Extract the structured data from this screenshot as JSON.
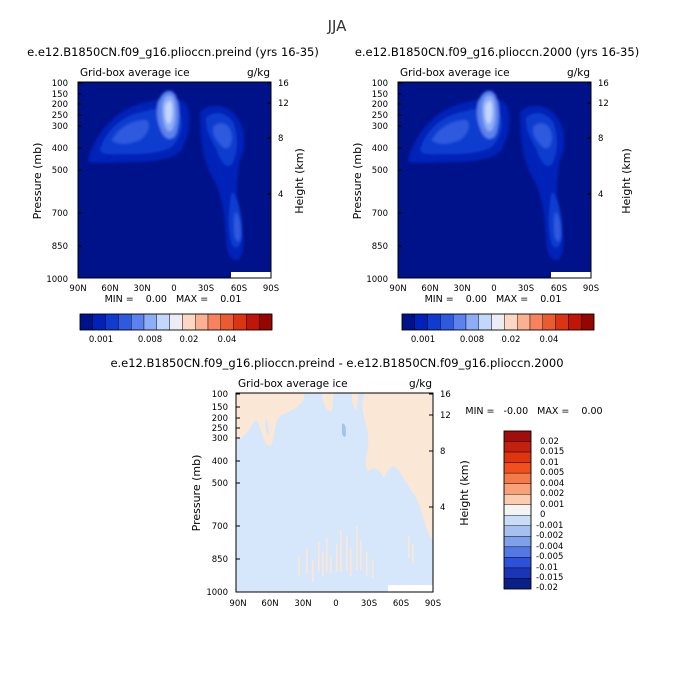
{
  "page_title": "JJA",
  "chart_data": [
    {
      "type": "heatmap",
      "title": "e.e12.B1850CN.f09_g16.plioccn.preind (yrs 16-35)",
      "subtitle_left": "Grid-box average ice",
      "subtitle_right": "g/kg",
      "xlabel": "",
      "ylabel": "Pressure (mb)",
      "y2label": "Height (km)",
      "x_ticks": [
        "90N",
        "60N",
        "30N",
        "0",
        "30S",
        "60S",
        "90S"
      ],
      "y_ticks": [
        "100",
        "150",
        "200",
        "250",
        "300",
        "400",
        "500",
        "700",
        "850",
        "1000"
      ],
      "y2_ticks": [
        "16",
        "12",
        "8",
        "4"
      ],
      "stats": "MIN =    0.00   MAX =    0.01",
      "colorbar": {
        "orientation": "horizontal",
        "labels": [
          "0.001",
          "0.008",
          "0.02",
          "0.04"
        ],
        "colors": [
          "#00128a",
          "#0022b8",
          "#0f3ccf",
          "#2e5ae0",
          "#5b82ee",
          "#8fadf6",
          "#c3d6fb",
          "#ececf5",
          "#fcd7c4",
          "#fbb091",
          "#f6835e",
          "#ec5a30",
          "#db3412",
          "#bf1608",
          "#960600"
        ]
      },
      "series": [
        {
          "name": "",
          "shape": "tropical-upper",
          "lat": 0.0,
          "p": 300,
          "value": 0.003
        },
        {
          "name": "",
          "shape": "tropical-core",
          "lat": 6.0,
          "p": 210,
          "value": 0.012
        },
        {
          "name": "",
          "shape": "nh-midlat",
          "lat": 45.0,
          "p": 350,
          "value": 0.004
        },
        {
          "name": "",
          "shape": "sh-midlat-upper",
          "lat": -60.0,
          "p": 350,
          "value": 0.006
        },
        {
          "name": "",
          "shape": "sh-midlat-lower",
          "lat": -72.0,
          "p": 780,
          "value": 0.004
        }
      ]
    },
    {
      "type": "heatmap",
      "title": "e.e12.B1850CN.f09_g16.plioccn.2000 (yrs 16-35)",
      "subtitle_left": "Grid-box average ice",
      "subtitle_right": "g/kg",
      "xlabel": "",
      "ylabel": "Pressure (mb)",
      "y2label": "Height (km)",
      "x_ticks": [
        "90N",
        "60N",
        "30N",
        "0",
        "30S",
        "60S",
        "90S"
      ],
      "y_ticks": [
        "100",
        "150",
        "200",
        "250",
        "300",
        "400",
        "500",
        "700",
        "850",
        "1000"
      ],
      "y2_ticks": [
        "16",
        "12",
        "8",
        "4"
      ],
      "stats": "MIN =    0.00   MAX =    0.01",
      "colorbar": {
        "orientation": "horizontal",
        "labels": [
          "0.001",
          "0.008",
          "0.02",
          "0.04"
        ],
        "colors": [
          "#00128a",
          "#0022b8",
          "#0f3ccf",
          "#2e5ae0",
          "#5b82ee",
          "#8fadf6",
          "#c3d6fb",
          "#ececf5",
          "#fcd7c4",
          "#fbb091",
          "#f6835e",
          "#ec5a30",
          "#db3412",
          "#bf1608",
          "#960600"
        ]
      },
      "series": [
        {
          "name": "",
          "shape": "tropical-upper",
          "lat": 0.0,
          "p": 300,
          "value": 0.003
        },
        {
          "name": "",
          "shape": "tropical-core",
          "lat": 6.0,
          "p": 210,
          "value": 0.012
        },
        {
          "name": "",
          "shape": "nh-midlat",
          "lat": 45.0,
          "p": 350,
          "value": 0.004
        },
        {
          "name": "",
          "shape": "sh-midlat-upper",
          "lat": -60.0,
          "p": 350,
          "value": 0.006
        },
        {
          "name": "",
          "shape": "sh-midlat-lower",
          "lat": -72.0,
          "p": 780,
          "value": 0.004
        }
      ]
    },
    {
      "type": "heatmap",
      "title": "e.e12.B1850CN.f09_g16.plioccn.preind - e.e12.B1850CN.f09_g16.plioccn.2000",
      "subtitle_left": "Grid-box average ice",
      "subtitle_right": "g/kg",
      "xlabel": "",
      "ylabel": "Pressure (mb)",
      "y2label": "Height (km)",
      "x_ticks": [
        "90N",
        "60N",
        "30N",
        "0",
        "30S",
        "60S",
        "90S"
      ],
      "y_ticks": [
        "100",
        "150",
        "200",
        "250",
        "300",
        "400",
        "500",
        "700",
        "850",
        "1000"
      ],
      "y2_ticks": [
        "16",
        "12",
        "8",
        "4"
      ],
      "stats": "MIN =   -0.00   MAX =    0.00",
      "colorbar": {
        "orientation": "vertical",
        "labels": [
          "0.02",
          "0.015",
          "0.01",
          "0.005",
          "0.004",
          "0.002",
          "0.001",
          "0",
          "-0.001",
          "-0.002",
          "-0.004",
          "-0.005",
          "-0.01",
          "-0.015",
          "-0.02"
        ],
        "colors": [
          "#a10c0c",
          "#c4200f",
          "#de3510",
          "#f0501e",
          "#f57a4a",
          "#f9a27a",
          "#fcccb0",
          "#f4f4f4",
          "#c9ddf6",
          "#a6c0f0",
          "#7fa1ea",
          "#5378e6",
          "#2b52d9",
          "#1b35b4",
          "#0a1f8a"
        ]
      },
      "series": [
        {
          "name": "",
          "shape": "diff-background",
          "value": -0.0005
        },
        {
          "name": "",
          "shape": "diff-positive-upper",
          "value": 0.0005
        }
      ]
    }
  ]
}
